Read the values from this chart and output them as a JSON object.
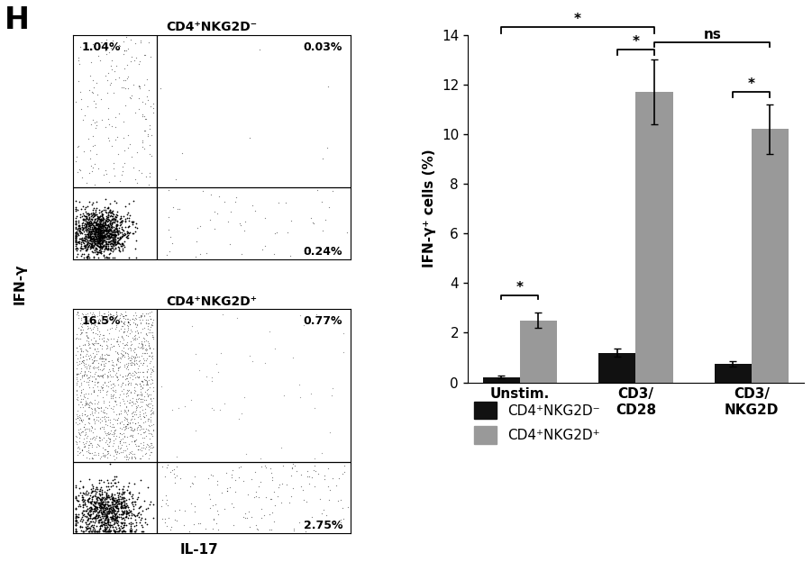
{
  "panel_label": "H",
  "dot_plot_top": {
    "title": "CD4⁺NKG2D⁻",
    "top_left_pct": "1.04%",
    "top_right_pct": "0.03%",
    "bottom_right_pct": "0.24%"
  },
  "dot_plot_bottom": {
    "title": "CD4⁺NKG2D⁺",
    "top_left_pct": "16.5%",
    "top_right_pct": "0.77%",
    "bottom_right_pct": "2.75%"
  },
  "xlabel": "IL-17",
  "ylabel": "IFN-γ",
  "bar_categories": [
    "Unstim.",
    "CD3/\nCD28",
    "CD3/\nNKG2D"
  ],
  "bar_ylabel": "IFN-γ⁺ cells (%)",
  "bar_ylim": [
    0,
    14
  ],
  "bar_yticks": [
    0,
    2,
    4,
    6,
    8,
    10,
    12,
    14
  ],
  "black_values": [
    0.22,
    1.2,
    0.75
  ],
  "black_errors": [
    0.07,
    0.18,
    0.12
  ],
  "gray_values": [
    2.5,
    11.7,
    10.2
  ],
  "gray_errors": [
    0.3,
    1.3,
    1.0
  ],
  "black_color": "#111111",
  "gray_color": "#999999",
  "legend_labels": [
    "CD4⁺NKG2D⁻",
    "CD4⁺NKG2D⁺"
  ],
  "background_color": "#ffffff"
}
